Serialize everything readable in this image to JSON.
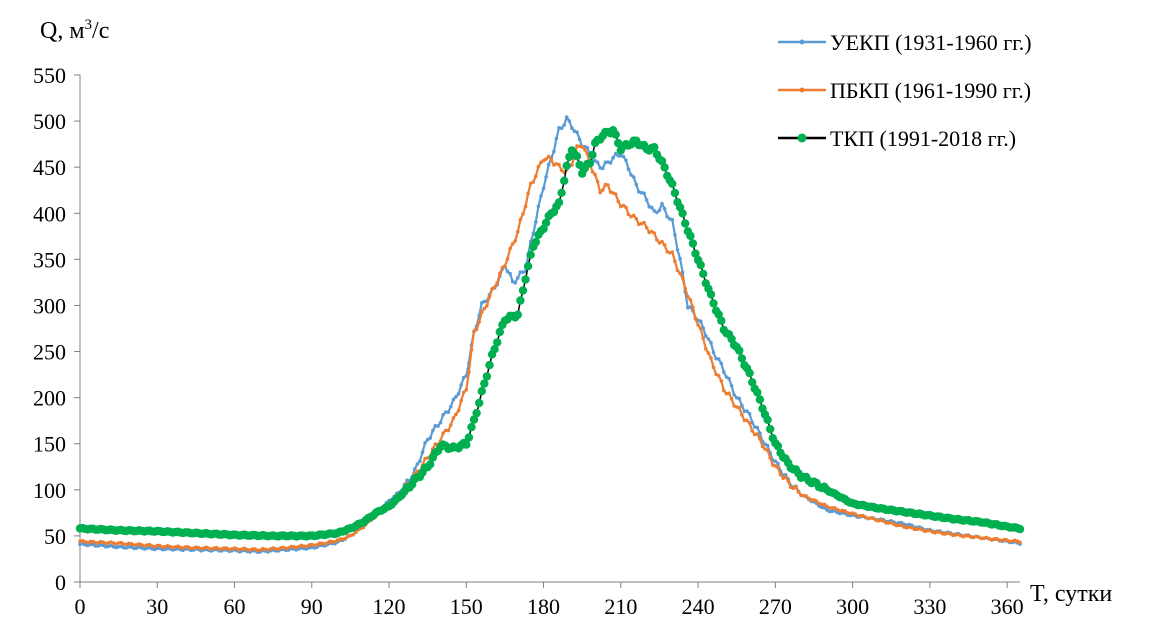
{
  "chart_data": {
    "type": "line",
    "title": "",
    "ylabel_prefix": "Q, м",
    "ylabel_sup": "3",
    "ylabel_suffix": "/с",
    "xlabel": "T, сутки",
    "xlim": [
      0,
      365
    ],
    "ylim": [
      0,
      550
    ],
    "xticks": [
      0,
      30,
      60,
      90,
      120,
      150,
      180,
      210,
      240,
      270,
      300,
      330,
      360
    ],
    "yticks": [
      0,
      50,
      100,
      150,
      200,
      250,
      300,
      350,
      400,
      450,
      500,
      550
    ],
    "grid": false,
    "legend_position": "top-right",
    "series": [
      {
        "name": "УЕКП (1931-1960 гг.)",
        "color": "#5B9BD5",
        "marker": "small-dot",
        "x": [
          0,
          15,
          30,
          45,
          60,
          70,
          80,
          90,
          95,
          100,
          105,
          110,
          115,
          120,
          125,
          130,
          135,
          140,
          145,
          150,
          153,
          156,
          160,
          163,
          165,
          168,
          170,
          173,
          176,
          180,
          183,
          186,
          189,
          191,
          193,
          195,
          198,
          200,
          203,
          207,
          210,
          213,
          216,
          220,
          223,
          226,
          230,
          233,
          236,
          240,
          243,
          246,
          250,
          255,
          260,
          265,
          270,
          275,
          280,
          290,
          300,
          310,
          320,
          330,
          340,
          350,
          360,
          365
        ],
        "values": [
          41,
          38,
          36,
          35,
          34,
          33,
          35,
          37,
          40,
          43,
          50,
          60,
          75,
          88,
          100,
          120,
          155,
          175,
          195,
          225,
          270,
          300,
          315,
          330,
          345,
          325,
          330,
          340,
          380,
          430,
          460,
          490,
          502,
          495,
          485,
          475,
          465,
          455,
          450,
          460,
          465,
          450,
          430,
          415,
          400,
          408,
          390,
          350,
          300,
          285,
          270,
          250,
          230,
          200,
          180,
          155,
          130,
          110,
          95,
          78,
          72,
          68,
          63,
          56,
          52,
          48,
          44,
          42
        ]
      },
      {
        "name": "ПБКП (1961-1990 гг.)",
        "color": "#ED7D31",
        "marker": "small-dot",
        "x": [
          0,
          15,
          30,
          45,
          60,
          70,
          80,
          90,
          95,
          100,
          105,
          110,
          115,
          120,
          125,
          130,
          135,
          140,
          145,
          150,
          153,
          156,
          160,
          165,
          170,
          175,
          180,
          183,
          186,
          189,
          191,
          193,
          195,
          198,
          200,
          202,
          205,
          210,
          215,
          220,
          225,
          230,
          235,
          240,
          245,
          250,
          255,
          260,
          265,
          270,
          275,
          280,
          290,
          300,
          310,
          320,
          330,
          340,
          350,
          360,
          365
        ],
        "values": [
          44,
          42,
          39,
          37,
          36,
          35,
          37,
          40,
          42,
          45,
          50,
          60,
          72,
          85,
          98,
          115,
          135,
          155,
          175,
          210,
          270,
          290,
          315,
          345,
          380,
          430,
          460,
          458,
          450,
          445,
          455,
          470,
          475,
          455,
          440,
          425,
          430,
          410,
          395,
          385,
          370,
          355,
          320,
          280,
          240,
          210,
          190,
          170,
          150,
          125,
          108,
          95,
          82,
          74,
          67,
          60,
          55,
          51,
          48,
          45,
          44
        ]
      },
      {
        "name": "ТКП (1991-2018 гг.)",
        "color": "#00B050",
        "line_color": "#000000",
        "marker": "large-dot",
        "x": [
          0,
          15,
          30,
          45,
          60,
          75,
          90,
          100,
          105,
          110,
          115,
          120,
          125,
          130,
          135,
          140,
          145,
          150,
          153,
          156,
          160,
          163,
          165,
          168,
          170,
          173,
          176,
          180,
          183,
          186,
          189,
          191,
          193,
          195,
          198,
          200,
          203,
          207,
          210,
          213,
          216,
          220,
          223,
          226,
          230,
          235,
          240,
          245,
          250,
          255,
          260,
          265,
          270,
          275,
          280,
          290,
          300,
          310,
          320,
          330,
          340,
          350,
          360,
          365
        ],
        "values": [
          58,
          56,
          55,
          53,
          51,
          50,
          50,
          53,
          58,
          65,
          75,
          82,
          95,
          110,
          125,
          148,
          145,
          150,
          175,
          205,
          245,
          270,
          285,
          288,
          290,
          330,
          365,
          385,
          400,
          410,
          450,
          470,
          460,
          445,
          455,
          475,
          485,
          490,
          470,
          475,
          478,
          470,
          470,
          455,
          430,
          390,
          350,
          310,
          275,
          255,
          225,
          190,
          150,
          128,
          115,
          100,
          85,
          80,
          76,
          72,
          68,
          65,
          60,
          58
        ]
      }
    ]
  }
}
